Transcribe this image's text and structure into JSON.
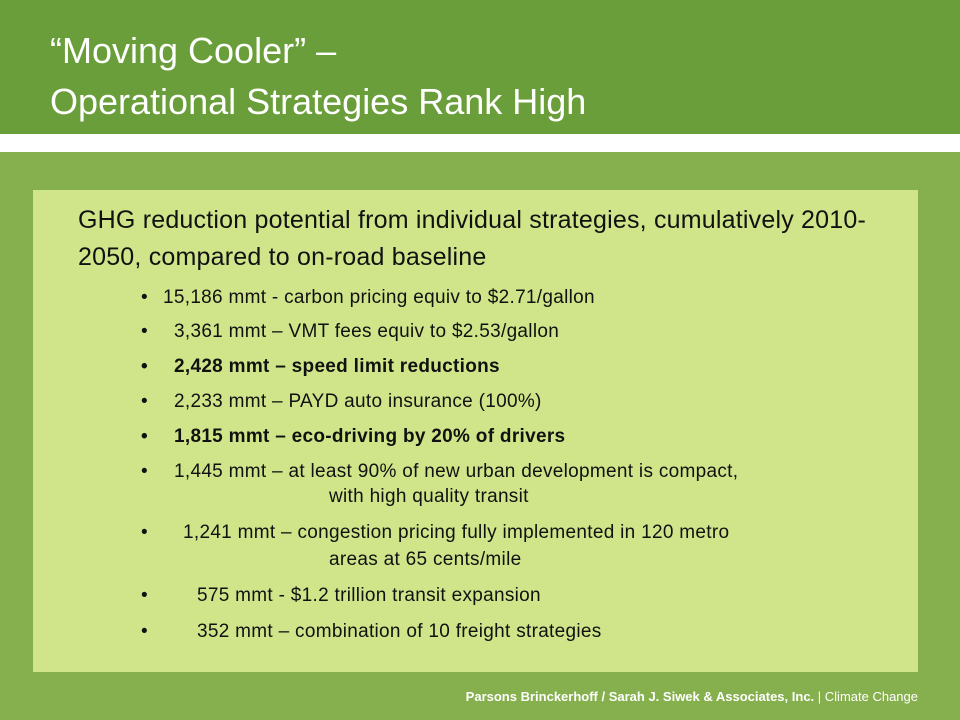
{
  "title": {
    "line1": "“Moving Cooler” –",
    "line2": "Operational Strategies Rank High"
  },
  "content": {
    "heading": "GHG reduction potential from individual strategies, cumulatively 2010-2050, compared to on-road baseline",
    "bullet_symbol": "•",
    "bullets": [
      {
        "text": "15,186 mmt  -  carbon pricing equiv to $2.71/gallon",
        "bold": false
      },
      {
        "text": "3,361 mmt – VMT fees equiv to $2.53/gallon",
        "bold": false
      },
      {
        "text": "2,428 mmt – speed limit reductions",
        "bold": true
      },
      {
        "text": "2,233 mmt – PAYD auto insurance (100%)",
        "bold": false
      },
      {
        "text": "1,815 mmt – eco-driving by 20% of drivers",
        "bold": true
      },
      {
        "text": "1,445 mmt – at least 90% of new urban development is compact,",
        "continuation": "with high quality transit",
        "bold": false
      },
      {
        "text": "1,241 mmt – congestion pricing fully implemented in 120 metro",
        "continuation": "areas at 65 cents/mile",
        "bold": false
      },
      {
        "text": "575 mmt - $1.2 trillion transit expansion",
        "bold": false
      },
      {
        "text": "352 mmt – combination of 10 freight strategies",
        "bold": false
      }
    ]
  },
  "footer": {
    "authors": "Parsons Brinckerhoff / Sarah  J. Siwek & Associates, Inc.",
    "separator": " | ",
    "topic": "Climate Change"
  },
  "colors": {
    "title_bar": "#6a9e3a",
    "background": "#86b04e",
    "content_box": "#d0e589",
    "text": "#111111"
  }
}
